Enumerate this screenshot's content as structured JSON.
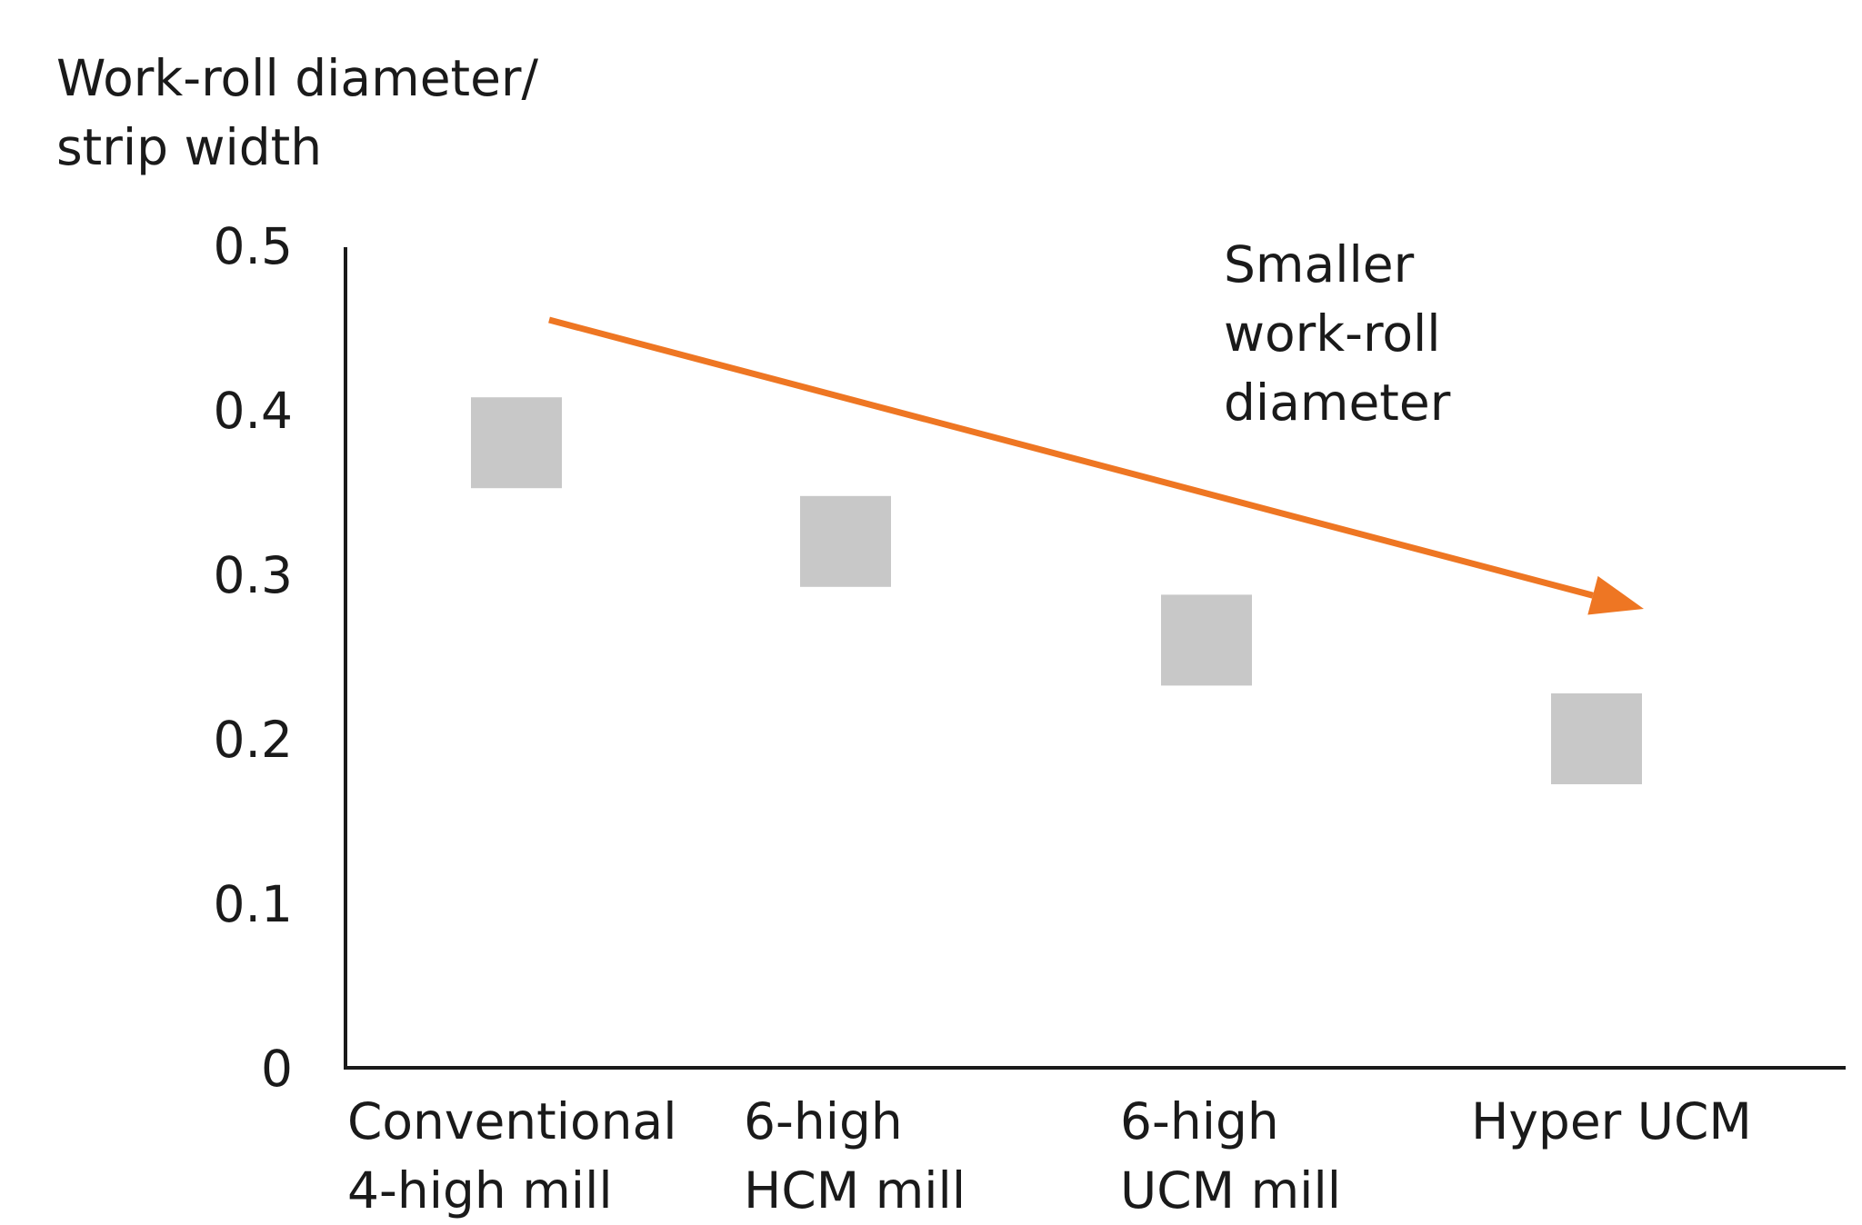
{
  "chart_data": {
    "type": "scatter",
    "ylabel": [
      "Work-roll diameter/",
      "strip width"
    ],
    "categories": [
      [
        "Conventional",
        "4-high mill"
      ],
      [
        "6-high",
        "HCM mill"
      ],
      [
        "6-high",
        "UCM mill"
      ],
      [
        "Hyper UCM"
      ]
    ],
    "values": [
      0.38,
      0.32,
      0.26,
      0.2
    ],
    "yticks": [
      "0",
      "0.1",
      "0.2",
      "0.3",
      "0.4",
      "0.5"
    ],
    "ylim": [
      0,
      0.5
    ],
    "annotation": [
      "Smaller",
      "work-roll",
      "diameter"
    ],
    "marker_color": "#c8c8c8",
    "arrow_color": "#ee7623",
    "axis_color": "#1a1a1a",
    "grid": false
  }
}
